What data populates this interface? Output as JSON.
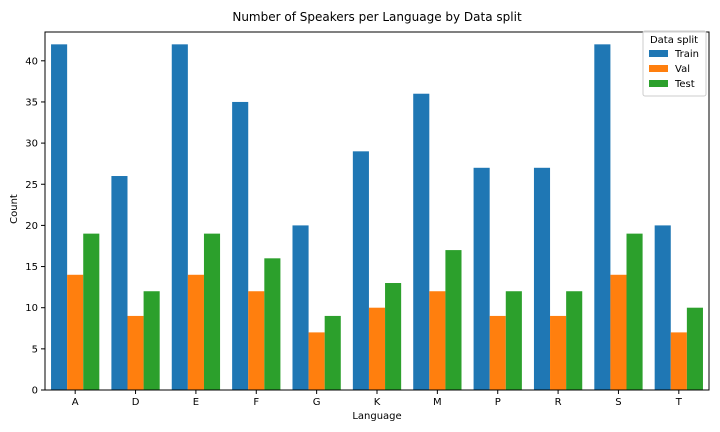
{
  "chart_data": {
    "type": "bar",
    "title": "Number of Speakers per Language by Data split",
    "xlabel": "Language",
    "ylabel": "Count",
    "categories": [
      "A",
      "D",
      "E",
      "F",
      "G",
      "K",
      "M",
      "P",
      "R",
      "S",
      "T"
    ],
    "series": [
      {
        "name": "Train",
        "color": "#1f77b4",
        "values": [
          42,
          26,
          42,
          35,
          20,
          29,
          36,
          27,
          27,
          42,
          20
        ]
      },
      {
        "name": "Val",
        "color": "#ff7f0e",
        "values": [
          14,
          9,
          14,
          12,
          7,
          10,
          12,
          9,
          9,
          14,
          7
        ]
      },
      {
        "name": "Test",
        "color": "#2ca02c",
        "values": [
          19,
          12,
          19,
          16,
          9,
          13,
          17,
          12,
          12,
          19,
          10
        ]
      }
    ],
    "ylim": [
      0,
      43.5
    ],
    "yticks": [
      0,
      5,
      10,
      15,
      20,
      25,
      30,
      35,
      40
    ],
    "grid": false,
    "legend": {
      "title": "Data split",
      "placement": "top-right"
    }
  }
}
